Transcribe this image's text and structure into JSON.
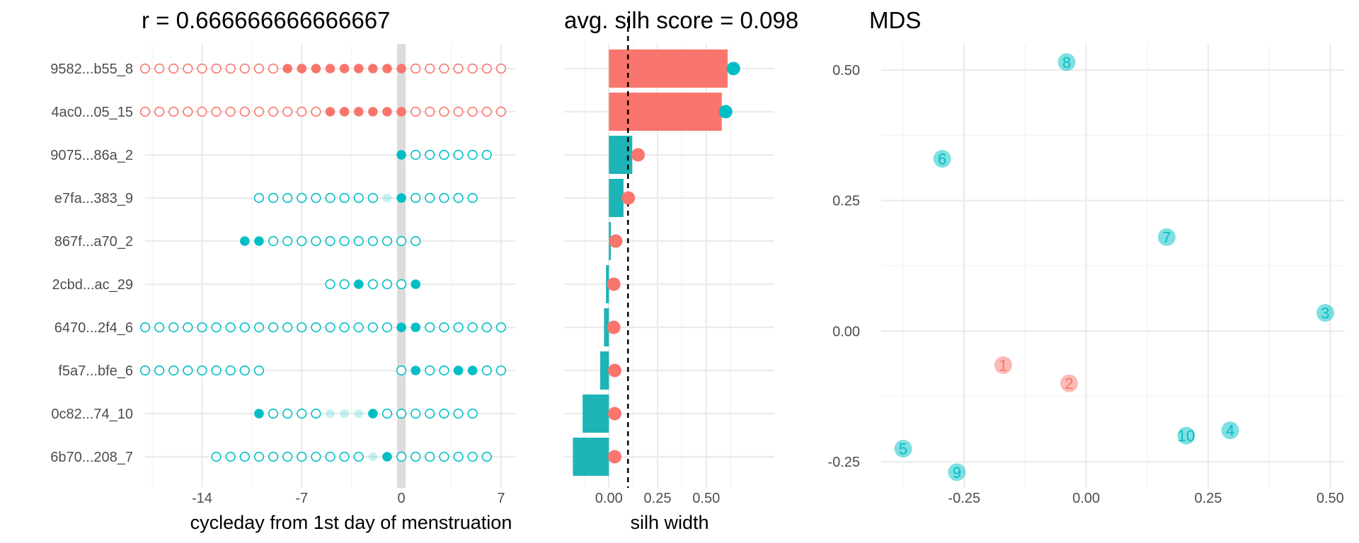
{
  "colors": {
    "cluster1": "#F8766D",
    "cluster2": "#00BFC4",
    "bar_teal": "#1CB4B6",
    "zero_band": "#dcdcdc"
  },
  "chart_data": [
    {
      "type": "scatter",
      "panel": "cycle-dots",
      "title": "r = 0.666666666666667",
      "xlabel": "cycleday from 1st day of menstruation",
      "ylabel": "",
      "xlim": [
        -18,
        8
      ],
      "xticks": [
        -14,
        -7,
        0,
        7
      ],
      "xtick_labels": [
        "-14",
        "-7",
        "0",
        "7"
      ],
      "grid": true,
      "categories": [
        "9582...b55_8",
        "4ac0...05_15",
        "9075...86a_2",
        "e7fa...383_9",
        "867f...a70_2",
        "2cbd...ac_29",
        "6470...2f4_6",
        "f5a7...bfe_6",
        "0c82...74_10",
        "6b70...208_7"
      ],
      "rows": [
        {
          "label": "9582...b55_8",
          "cluster": 1,
          "start": -18,
          "end": 7,
          "filled": [
            -8,
            -7,
            -6,
            -5,
            -4,
            -3,
            -2,
            -1,
            0
          ],
          "faded": []
        },
        {
          "label": "4ac0...05_15",
          "cluster": 1,
          "start": -18,
          "end": 7,
          "filled": [
            -5,
            -4,
            -3,
            -2,
            -1,
            0
          ],
          "faded": []
        },
        {
          "label": "9075...86a_2",
          "cluster": 2,
          "start": 0,
          "end": 6,
          "filled": [
            0
          ],
          "faded": []
        },
        {
          "label": "e7fa...383_9",
          "cluster": 2,
          "start": -10,
          "end": 5,
          "filled": [
            0
          ],
          "faded": [
            -1
          ]
        },
        {
          "label": "867f...a70_2",
          "cluster": 2,
          "start": -11,
          "end": 1,
          "filled": [
            -11,
            -10
          ],
          "faded": []
        },
        {
          "label": "2cbd...ac_29",
          "cluster": 2,
          "start": -5,
          "end": 1,
          "filled": [
            -3,
            1
          ],
          "faded": []
        },
        {
          "label": "6470...2f4_6",
          "cluster": 2,
          "start": -18,
          "end": 7,
          "filled": [
            0,
            1
          ],
          "faded": []
        },
        {
          "label": "f5a7...bfe_6",
          "cluster": 2,
          "ranges": [
            [
              -18,
              -10
            ],
            [
              0,
              7
            ]
          ],
          "filled": [
            1,
            4,
            5
          ],
          "faded": []
        },
        {
          "label": "0c82...74_10",
          "cluster": 2,
          "start": -10,
          "end": 5,
          "filled": [
            -10,
            -2
          ],
          "faded": [
            -5,
            -4,
            -3
          ]
        },
        {
          "label": "6b70...208_7",
          "cluster": 2,
          "start": -13,
          "end": 6,
          "filled": [
            -1
          ],
          "faded": [
            -2
          ]
        }
      ]
    },
    {
      "type": "bar",
      "panel": "silhouette",
      "title": "avg. silh score = 0.098",
      "xlabel": "silh width",
      "ylabel": "",
      "xlim": [
        -0.23,
        0.85
      ],
      "xticks": [
        0,
        0.25,
        0.5
      ],
      "xtick_labels": [
        "0.00",
        "0.25",
        "0.50"
      ],
      "reference_line": 0.098,
      "grid": true,
      "categories": [
        "9582...b55_8",
        "4ac0...05_15",
        "9075...86a_2",
        "e7fa...383_9",
        "867f...a70_2",
        "2cbd...ac_29",
        "6470...2f4_6",
        "f5a7...bfe_6",
        "0c82...74_10",
        "6b70...208_7"
      ],
      "values": [
        0.61,
        0.58,
        0.12,
        0.075,
        0.01,
        -0.015,
        -0.025,
        -0.045,
        -0.135,
        -0.185
      ],
      "bar_cluster": [
        1,
        1,
        2,
        2,
        2,
        2,
        2,
        2,
        2,
        2
      ],
      "neighbor_values": [
        0.64,
        0.6,
        0.15,
        0.1,
        0.035,
        0.025,
        0.025,
        0.03,
        0.03,
        0.03
      ],
      "neighbor_cluster": [
        2,
        2,
        1,
        1,
        1,
        1,
        1,
        1,
        1,
        1
      ]
    },
    {
      "type": "scatter",
      "panel": "mds",
      "title": "MDS",
      "xlabel": "",
      "ylabel": "",
      "xlim": [
        -0.42,
        0.53
      ],
      "ylim": [
        -0.3,
        0.55
      ],
      "xticks": [
        -0.25,
        0,
        0.25,
        0.5
      ],
      "xtick_labels": [
        "-0.25",
        "0.00",
        "0.25",
        "0.50"
      ],
      "yticks": [
        -0.25,
        0,
        0.25,
        0.5
      ],
      "ytick_labels": [
        "-0.25",
        "0.00",
        "0.25",
        "0.50"
      ],
      "grid": true,
      "points": [
        {
          "label": "1",
          "x": -0.17,
          "y": -0.065,
          "cluster": 1
        },
        {
          "label": "2",
          "x": -0.035,
          "y": -0.1,
          "cluster": 1
        },
        {
          "label": "3",
          "x": 0.49,
          "y": 0.035,
          "cluster": 2
        },
        {
          "label": "4",
          "x": 0.295,
          "y": -0.19,
          "cluster": 2
        },
        {
          "label": "5",
          "x": -0.375,
          "y": -0.225,
          "cluster": 2
        },
        {
          "label": "6",
          "x": -0.295,
          "y": 0.33,
          "cluster": 2
        },
        {
          "label": "7",
          "x": 0.165,
          "y": 0.18,
          "cluster": 2
        },
        {
          "label": "8",
          "x": -0.04,
          "y": 0.515,
          "cluster": 2
        },
        {
          "label": "9",
          "x": -0.265,
          "y": -0.27,
          "cluster": 2
        },
        {
          "label": "10",
          "x": 0.205,
          "y": -0.2,
          "cluster": 2
        }
      ]
    }
  ]
}
